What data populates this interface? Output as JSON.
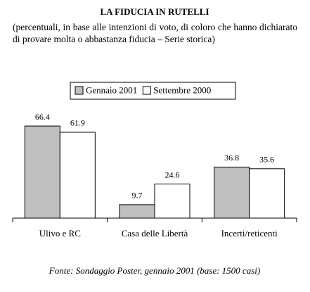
{
  "chart_data": {
    "type": "bar",
    "title": "LA FIDUCIA IN RUTELLI",
    "subtitle": "(percentuali, in base alle intenzioni di voto, di coloro che hanno dichiarato di provare molta o abbastanza fiducia – Serie storica)",
    "categories": [
      "Ulivo e RC",
      "Casa delle Libertà",
      "Incerti/reticenti"
    ],
    "series": [
      {
        "name": "Gennaio 2001",
        "color": "#c0c0c0",
        "values": [
          66.4,
          9.7,
          36.8
        ]
      },
      {
        "name": "Settembre 2000",
        "color": "#ffffff",
        "values": [
          61.9,
          24.6,
          35.6
        ]
      }
    ],
    "ylim": [
      0,
      70
    ],
    "source": "Fonte: Sondaggio Poster, gennaio 2001 (base: 1500 casi)"
  }
}
